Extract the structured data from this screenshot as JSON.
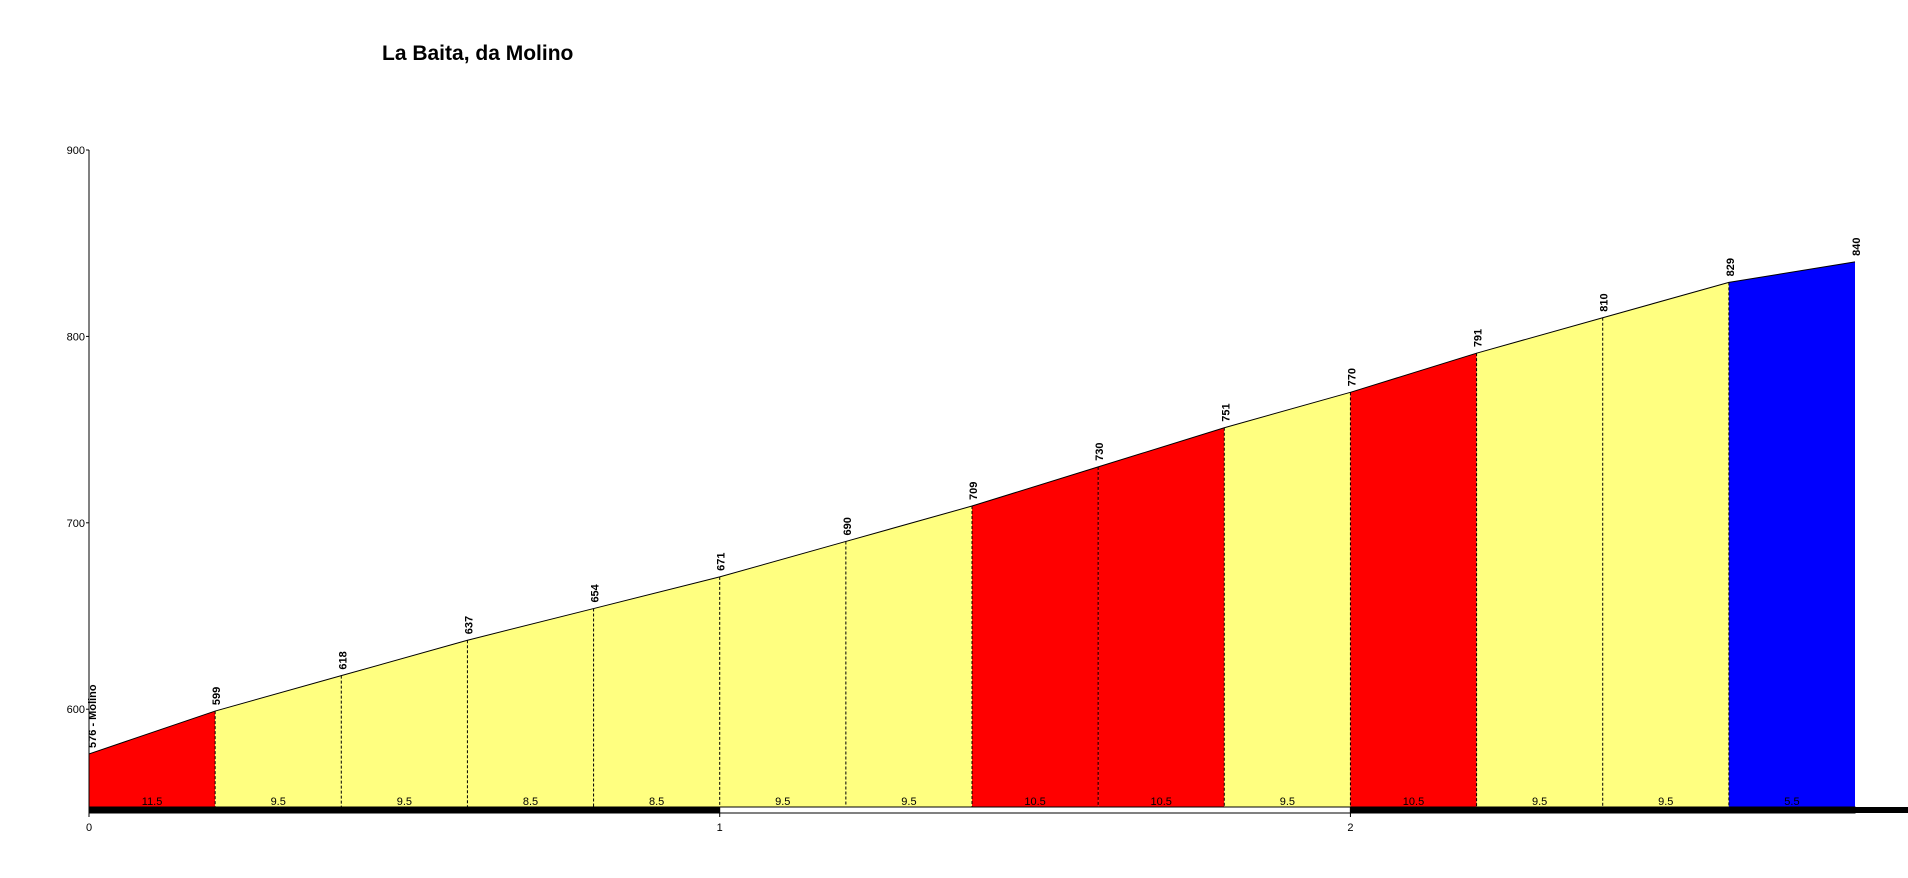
{
  "chart_data": {
    "type": "area",
    "title": "La Baita, da Molino",
    "xlabel": "",
    "ylabel": "",
    "xlim": [
      0,
      2.8
    ],
    "ylim": [
      547,
      900
    ],
    "y_ticks": [
      "600",
      "700",
      "800",
      "900"
    ],
    "x_ticks": [
      "0",
      "1",
      "2"
    ],
    "segment_length_km": 0.2,
    "points": [
      {
        "km": 0.0,
        "elev": 576,
        "label": "576 - Molino"
      },
      {
        "km": 0.2,
        "elev": 599,
        "label": "599"
      },
      {
        "km": 0.4,
        "elev": 618,
        "label": "618"
      },
      {
        "km": 0.6,
        "elev": 637,
        "label": "637"
      },
      {
        "km": 0.8,
        "elev": 654,
        "label": "654"
      },
      {
        "km": 1.0,
        "elev": 671,
        "label": "671"
      },
      {
        "km": 1.2,
        "elev": 690,
        "label": "690"
      },
      {
        "km": 1.4,
        "elev": 709,
        "label": "709"
      },
      {
        "km": 1.6,
        "elev": 730,
        "label": "730"
      },
      {
        "km": 1.8,
        "elev": 751,
        "label": "751"
      },
      {
        "km": 2.0,
        "elev": 770,
        "label": "770"
      },
      {
        "km": 2.2,
        "elev": 791,
        "label": "791"
      },
      {
        "km": 2.4,
        "elev": 810,
        "label": "810"
      },
      {
        "km": 2.6,
        "elev": 829,
        "label": "829"
      },
      {
        "km": 2.8,
        "elev": 840,
        "label": "840"
      }
    ],
    "segments": [
      {
        "gradient": "11.5",
        "color": "#FF0000"
      },
      {
        "gradient": "9.5",
        "color": "#FFFF80"
      },
      {
        "gradient": "9.5",
        "color": "#FFFF80"
      },
      {
        "gradient": "8.5",
        "color": "#FFFF80"
      },
      {
        "gradient": "8.5",
        "color": "#FFFF80"
      },
      {
        "gradient": "9.5",
        "color": "#FFFF80"
      },
      {
        "gradient": "9.5",
        "color": "#FFFF80"
      },
      {
        "gradient": "10.5",
        "color": "#FF0000"
      },
      {
        "gradient": "10.5",
        "color": "#FF0000"
      },
      {
        "gradient": "9.5",
        "color": "#FFFF80"
      },
      {
        "gradient": "10.5",
        "color": "#FF0000"
      },
      {
        "gradient": "9.5",
        "color": "#FFFF80"
      },
      {
        "gradient": "9.5",
        "color": "#FFFF80"
      },
      {
        "gradient": "5.5",
        "color": "#0000FF"
      }
    ],
    "grid": false,
    "legend": "none"
  }
}
